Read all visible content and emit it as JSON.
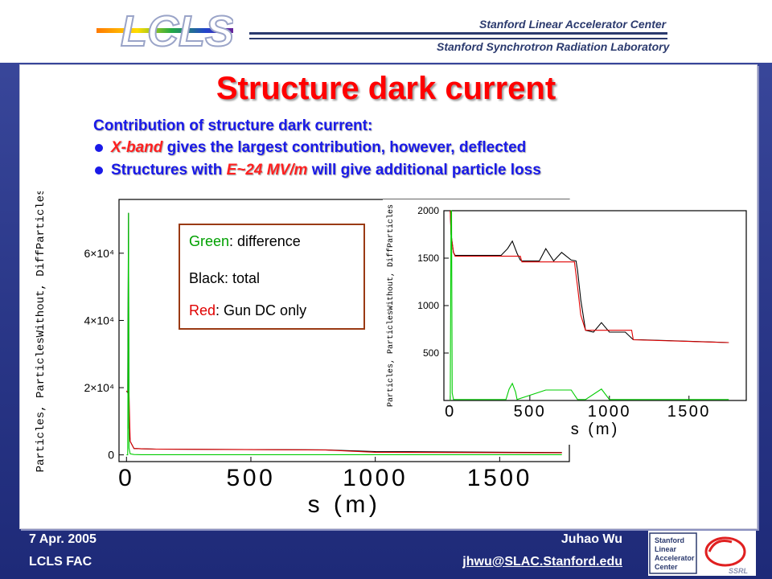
{
  "header": {
    "logo_text": "LCLS",
    "org_line1": "Stanford Linear Accelerator Center",
    "org_line2": "Stanford Synchrotron Radiation Laboratory"
  },
  "slide": {
    "title": "Structure dark current",
    "subhead": "Contribution of structure dark current:",
    "bullet1_em": "X-band",
    "bullet1_rest": " gives the largest contribution, however, deflected",
    "bullet2_pre": "Structures with ",
    "bullet2_em": "E~24 MV/m",
    "bullet2_rest": " will give additional particle loss"
  },
  "legend": {
    "green_word": "Green",
    "green_rest": ": difference",
    "black_line": "Black: total",
    "red_word": "Red",
    "red_rest": ": Gun DC only"
  },
  "chart_data": [
    {
      "type": "line",
      "xlabel": "s (m)",
      "ylabel": "Particles, ParticlesWithout, DiffParticles",
      "xlim": [
        -30,
        1780
      ],
      "ylim": [
        -2000,
        76000
      ],
      "x_ticks": [
        "0",
        "500",
        "1000",
        "1500"
      ],
      "x_tick_values": [
        0,
        500,
        1000,
        1500
      ],
      "y_ticks": [
        "0",
        "2×10⁴",
        "4×10⁴",
        "6×10⁴"
      ],
      "y_tick_values": [
        0,
        20000,
        40000,
        60000
      ],
      "series": [
        {
          "name": "Black",
          "color": "#000000",
          "x": [
            0,
            5,
            8,
            10,
            15,
            30,
            60,
            120,
            800,
            1000,
            1750
          ],
          "y": [
            19000,
            18500,
            72000,
            8000,
            4000,
            1900,
            1800,
            1700,
            1500,
            1000,
            700
          ]
        },
        {
          "name": "Red",
          "color": "#e00000",
          "x": [
            0,
            10,
            15,
            30,
            60,
            120,
            800,
            1000,
            1750
          ],
          "y": [
            19000,
            18500,
            4000,
            1900,
            1800,
            1700,
            1450,
            750,
            600
          ]
        },
        {
          "name": "Green",
          "color": "#00cc00",
          "x": [
            0,
            5,
            8,
            10,
            15,
            30,
            60,
            500,
            1000,
            1750
          ],
          "y": [
            0,
            0,
            72000,
            2000,
            300,
            100,
            50,
            50,
            50,
            50
          ]
        }
      ]
    },
    {
      "type": "line",
      "xlabel": "s (m)",
      "ylabel": "Particles, ParticlesWithout, DiffParticles",
      "xlim": [
        -40,
        1860
      ],
      "ylim": [
        0,
        2000
      ],
      "x_ticks": [
        "0",
        "500",
        "1000",
        "1500"
      ],
      "x_tick_values": [
        0,
        500,
        1000,
        1500
      ],
      "y_ticks": [
        "500",
        "1000",
        "1500",
        "2000"
      ],
      "y_tick_values": [
        500,
        1000,
        1500,
        2000
      ],
      "series": [
        {
          "name": "Black",
          "color": "#000000",
          "x": [
            0,
            5,
            20,
            30,
            320,
            360,
            390,
            420,
            440,
            450,
            560,
            600,
            650,
            700,
            760,
            790,
            800,
            820,
            850,
            900,
            950,
            1000,
            1050,
            1100,
            1150,
            1200,
            1750
          ],
          "y": [
            2000,
            1750,
            1560,
            1530,
            1530,
            1600,
            1680,
            1550,
            1480,
            1470,
            1470,
            1600,
            1470,
            1560,
            1480,
            1470,
            1370,
            1060,
            740,
            720,
            820,
            720,
            720,
            720,
            640,
            640,
            610
          ]
        },
        {
          "name": "Red",
          "color": "#e00000",
          "x": [
            0,
            5,
            20,
            30,
            440,
            450,
            780,
            800,
            820,
            850,
            1140,
            1150,
            1750
          ],
          "y": [
            2000,
            1750,
            1560,
            1520,
            1520,
            1460,
            1460,
            1200,
            900,
            740,
            740,
            640,
            610
          ]
        },
        {
          "name": "Green",
          "color": "#00cc00",
          "x": [
            0,
            5,
            8,
            12,
            20,
            350,
            370,
            390,
            410,
            420,
            600,
            650,
            700,
            760,
            800,
            850,
            950,
            1000,
            1750
          ],
          "y": [
            0,
            2000,
            2000,
            80,
            10,
            10,
            120,
            180,
            90,
            10,
            110,
            110,
            110,
            110,
            10,
            10,
            120,
            10,
            10
          ]
        }
      ]
    }
  ],
  "footer": {
    "date": "7 Apr. 2005",
    "committee": "LCLS FAC",
    "author": "Juhao Wu",
    "email": "jhwu@SLAC.Stanford.edu",
    "logo_line1": "Stanford",
    "logo_line2": "Linear",
    "logo_line3": "Accelerator",
    "logo_line4": "Center",
    "ssrl": "SSRL"
  }
}
